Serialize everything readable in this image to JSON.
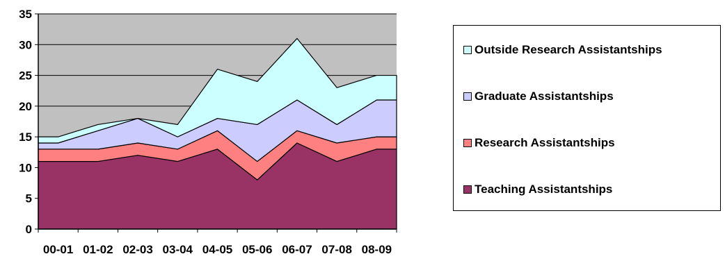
{
  "chart_data": {
    "type": "area",
    "stacked": true,
    "categories": [
      "00-01",
      "01-02",
      "02-03",
      "03-04",
      "04-05",
      "05-06",
      "06-07",
      "07-08",
      "08-09"
    ],
    "series": [
      {
        "name": "Teaching Assistantships",
        "values": [
          11,
          11,
          12,
          11,
          13,
          8,
          14,
          11,
          13
        ],
        "color": "#993366"
      },
      {
        "name": "Research Assistantships",
        "values": [
          2,
          2,
          2,
          2,
          3,
          3,
          2,
          3,
          2
        ],
        "color": "#ff8080"
      },
      {
        "name": "Graduate Assistantships",
        "values": [
          1,
          3,
          4,
          2,
          2,
          6,
          5,
          3,
          6
        ],
        "color": "#ccccff"
      },
      {
        "name": "Outside Research Assistantships",
        "values": [
          1,
          1,
          0,
          2,
          8,
          7,
          10,
          6,
          4
        ],
        "color": "#ccffff"
      }
    ],
    "legend_order": [
      3,
      2,
      1,
      0
    ],
    "ylim": [
      0,
      35
    ],
    "yticks": [
      0,
      5,
      10,
      15,
      20,
      25,
      30,
      35
    ],
    "grid": true,
    "legend_position": "right",
    "plot_background": "#c0c0c0"
  }
}
